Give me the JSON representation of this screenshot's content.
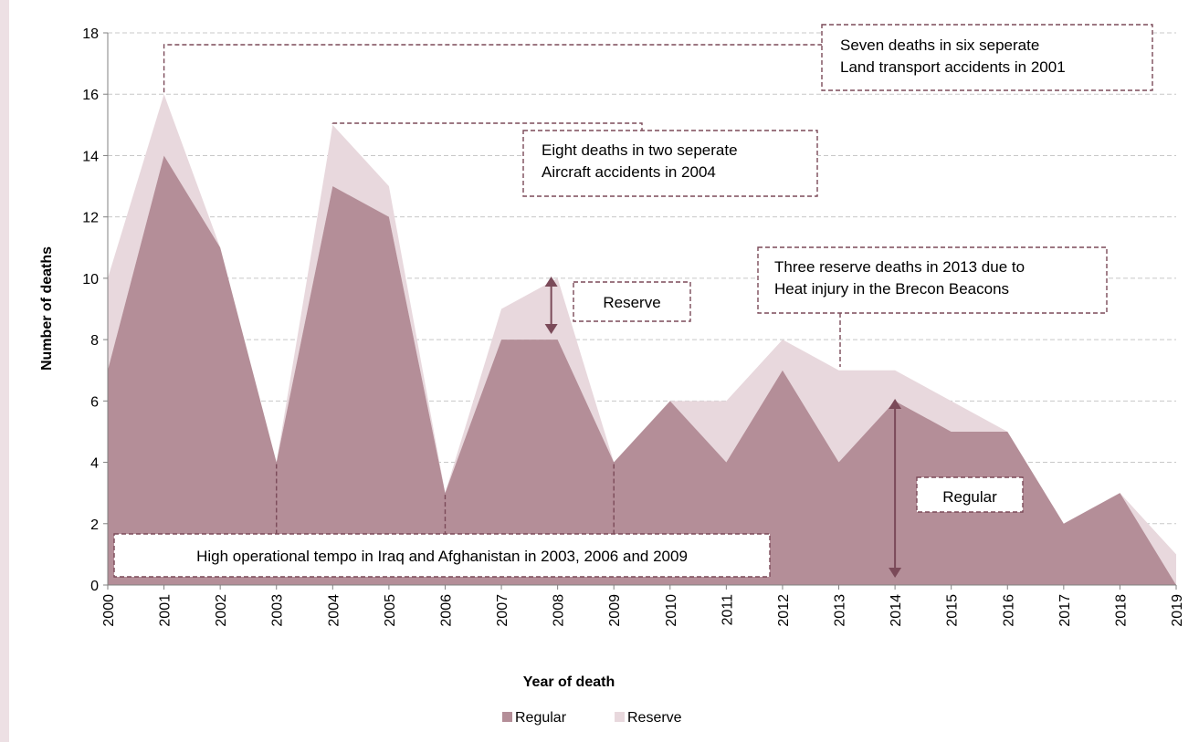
{
  "chart_data": {
    "type": "area",
    "stacked": true,
    "title": "",
    "xlabel": "Year of death",
    "ylabel": "Number of deaths",
    "ylim": [
      0,
      18
    ],
    "yticks": [
      0,
      2,
      4,
      6,
      8,
      10,
      12,
      14,
      16,
      18
    ],
    "x": [
      "2000",
      "2001",
      "2002",
      "2003",
      "2004",
      "2005",
      "2006",
      "2007",
      "2008",
      "2009",
      "2010",
      "2011",
      "2012",
      "2013",
      "2014",
      "2015",
      "2016",
      "2017",
      "2018",
      "2019"
    ],
    "series": [
      {
        "name": "Regular",
        "color": "#b48e98",
        "values": [
          7,
          14,
          11,
          4,
          13,
          12,
          3,
          8,
          8,
          4,
          6,
          4,
          7,
          4,
          6,
          5,
          5,
          2,
          3,
          0
        ]
      },
      {
        "name": "Reserve",
        "color": "#e8d8dd",
        "values": [
          3,
          2,
          0,
          0,
          2,
          1,
          0,
          1,
          2,
          0,
          0,
          2,
          1,
          3,
          1,
          1,
          0,
          0,
          0,
          1
        ]
      }
    ],
    "grid": true,
    "legend_position": "bottom",
    "annotations": [
      {
        "id": "land",
        "lines": [
          "Seven deaths in six seperate",
          "Land transport accidents in 2001"
        ]
      },
      {
        "id": "aircraft",
        "lines": [
          "Eight deaths in two seperate",
          "Aircraft accidents in 2004"
        ]
      },
      {
        "id": "heat",
        "lines": [
          "Three reserve deaths in 2013 due to",
          "Heat injury in the Brecon Beacons"
        ]
      },
      {
        "id": "reserve",
        "lines": [
          "Reserve"
        ]
      },
      {
        "id": "regular",
        "lines": [
          "Regular"
        ]
      },
      {
        "id": "tempo",
        "lines": [
          "High operational tempo in Iraq and Afghanistan in 2003, 2006 and 2009"
        ]
      }
    ]
  }
}
